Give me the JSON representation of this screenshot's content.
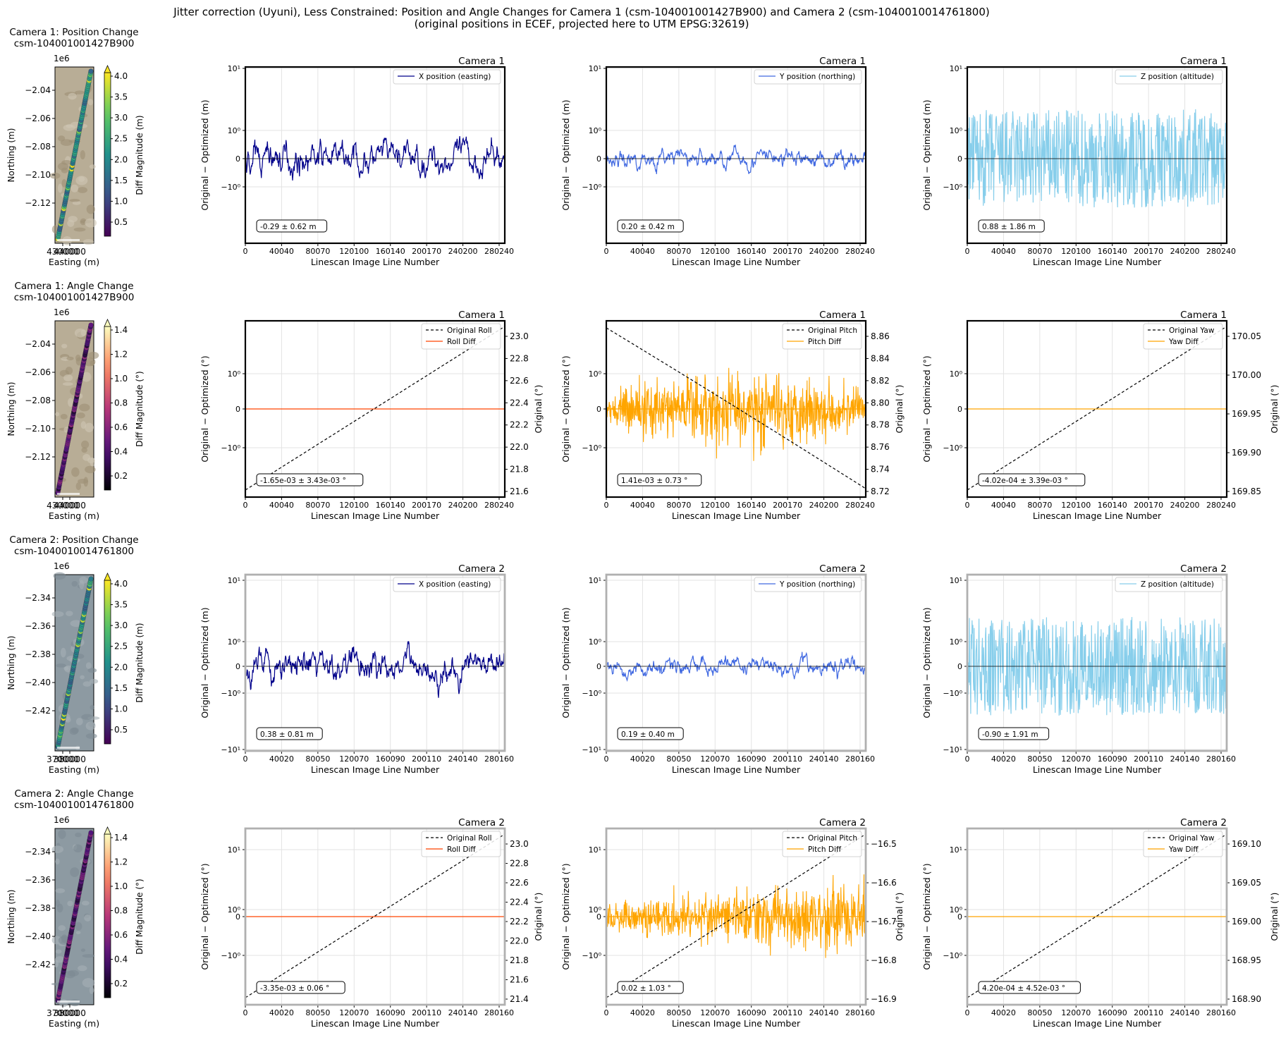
{
  "figure": {
    "title_line1": "Jitter correction (Uyuni), Less Constrained: Position and Angle Changes for Camera 1 (csm-104001001427B900) and Camera 2 (csm-1040010014761800)",
    "title_line2": "(original positions in ECEF, projected here to UTM EPSG:32619)"
  },
  "colors": {
    "x_pos": "#00008b",
    "y_pos": "#4169e1",
    "z_pos": "#87ceeb",
    "roll": "#ff4500",
    "pitch": "#ffa500",
    "yaw": "#ffa500",
    "original": "#000000"
  },
  "chart_data": [
    {
      "type": "scatter",
      "title_line1": "Camera 1: Position Change",
      "title_line2": "csm-104001001427B900",
      "xlabel": "Easting (m)",
      "ylabel": "Northing (m)",
      "x_offset_label": "",
      "y_offset_label": "1e6",
      "x_ticks": [
        "430000",
        "440000"
      ],
      "y_ticks": [
        "−2.04",
        "−2.06",
        "−2.08",
        "−2.10",
        "−2.12"
      ],
      "colorbar_label": "Diff Magnitude (m)",
      "colorbar_ticks": [
        "0.5",
        "1.0",
        "1.5",
        "2.0",
        "2.5",
        "3.0",
        "3.5",
        "4.0"
      ],
      "colormap": "viridis",
      "background": "terrain"
    },
    {
      "type": "line",
      "label": "Camera 1",
      "ylabel": "Original − Optimized (m)",
      "xlabel": "Linescan Image Line Number",
      "x_ticks": [
        "0",
        "40040",
        "80070",
        "120100",
        "160140",
        "200170",
        "240200",
        "280240"
      ],
      "y_ticks": [
        "10¹",
        "10⁰",
        "0",
        "−10⁰"
      ],
      "series": [
        {
          "name": "X position (easting)",
          "values": []
        }
      ],
      "stats": "-0.29 ± 0.62 m",
      "color_key": "x_pos",
      "highlight": true
    },
    {
      "type": "line",
      "label": "Camera 1",
      "ylabel": "Original − Optimized (m)",
      "xlabel": "Linescan Image Line Number",
      "x_ticks": [
        "0",
        "40040",
        "80070",
        "120100",
        "160140",
        "200170",
        "240200",
        "280240"
      ],
      "y_ticks": [
        "10¹",
        "10⁰",
        "0",
        "−10⁰"
      ],
      "series": [
        {
          "name": "Y position (northing)",
          "values": []
        }
      ],
      "stats": "0.20 ± 0.42 m",
      "color_key": "y_pos",
      "highlight": true
    },
    {
      "type": "line",
      "label": "Camera 1",
      "ylabel": "Original − Optimized (m)",
      "xlabel": "Linescan Image Line Number",
      "x_ticks": [
        "0",
        "40040",
        "80070",
        "120100",
        "160140",
        "200170",
        "240200",
        "280240"
      ],
      "y_ticks": [
        "10¹",
        "10⁰",
        "0",
        "−10⁰"
      ],
      "series": [
        {
          "name": "Z position (altitude)",
          "values": []
        }
      ],
      "stats": "0.88 ± 1.86 m",
      "color_key": "z_pos",
      "highlight": true
    },
    {
      "type": "scatter",
      "title_line1": "Camera 1: Angle Change",
      "title_line2": "csm-104001001427B900",
      "xlabel": "Easting (m)",
      "ylabel": "Northing (m)",
      "x_offset_label": "",
      "y_offset_label": "1e6",
      "x_ticks": [
        "430000",
        "440000"
      ],
      "y_ticks": [
        "−2.04",
        "−2.06",
        "−2.08",
        "−2.10",
        "−2.12"
      ],
      "colorbar_label": "Diff Magnitude (°)",
      "colorbar_ticks": [
        "0.2",
        "0.4",
        "0.6",
        "0.8",
        "1.0",
        "1.2",
        "1.4"
      ],
      "colormap": "magma",
      "background": "terrain"
    },
    {
      "type": "line",
      "label": "Camera 1",
      "ylabel": "Original − Optimized (°)",
      "ylabel2": "Original (°)",
      "xlabel": "Linescan Image Line Number",
      "x_ticks": [
        "0",
        "40040",
        "80070",
        "120100",
        "160140",
        "200170",
        "240200",
        "280240"
      ],
      "y_ticks": [
        "10⁰",
        "0",
        "−10⁰"
      ],
      "y2_ticks": [
        "23.0",
        "22.8",
        "22.6",
        "22.4",
        "22.2",
        "22.0",
        "21.8",
        "21.6"
      ],
      "series": [
        {
          "name": "Original Roll",
          "values": []
        },
        {
          "name": "Roll Diff",
          "values": []
        }
      ],
      "stats": "-1.65e-03 ± 3.43e-03 °",
      "color_key": "roll",
      "trend": "up",
      "noise": 0.0,
      "highlight": true
    },
    {
      "type": "line",
      "label": "Camera 1",
      "ylabel": "Original − Optimized (°)",
      "ylabel2": "Original (°)",
      "xlabel": "Linescan Image Line Number",
      "x_ticks": [
        "0",
        "40040",
        "80070",
        "120100",
        "160140",
        "200170",
        "240200",
        "280240"
      ],
      "y_ticks": [
        "10⁰",
        "0",
        "−10⁰"
      ],
      "y2_ticks": [
        "8.86",
        "8.84",
        "8.82",
        "8.80",
        "8.78",
        "8.76",
        "8.74",
        "8.72"
      ],
      "series": [
        {
          "name": "Original Pitch",
          "values": []
        },
        {
          "name": "Pitch Diff",
          "values": []
        }
      ],
      "stats": "1.41e-03 ± 0.73 °",
      "color_key": "pitch",
      "trend": "down",
      "noise": 1.0,
      "highlight": true
    },
    {
      "type": "line",
      "label": "Camera 1",
      "ylabel": "Original − Optimized (°)",
      "ylabel2": "Original (°)",
      "xlabel": "Linescan Image Line Number",
      "x_ticks": [
        "0",
        "40040",
        "80070",
        "120100",
        "160140",
        "200170",
        "240200",
        "280240"
      ],
      "y_ticks": [
        "10⁰",
        "0",
        "−10⁰"
      ],
      "y2_ticks": [
        "170.05",
        "170.00",
        "169.95",
        "169.90",
        "169.85"
      ],
      "series": [
        {
          "name": "Original Yaw",
          "values": []
        },
        {
          "name": "Yaw Diff",
          "values": []
        }
      ],
      "stats": "-4.02e-04 ± 3.39e-03 °",
      "color_key": "yaw",
      "trend": "up",
      "noise": 0.0,
      "highlight": true
    },
    {
      "type": "scatter",
      "title_line1": "Camera 2: Position Change",
      "title_line2": "csm-1040010014761800",
      "xlabel": "Easting (m)",
      "ylabel": "Northing (m)",
      "x_offset_label": "",
      "y_offset_label": "1e6",
      "x_ticks": [
        "370000",
        "380000"
      ],
      "y_ticks": [
        "−2.34",
        "−2.36",
        "−2.38",
        "−2.40",
        "−2.42"
      ],
      "colorbar_label": "Diff Magnitude (m)",
      "colorbar_ticks": [
        "0.5",
        "1.0",
        "1.5",
        "2.0",
        "2.5",
        "3.0",
        "3.5",
        "4.0"
      ],
      "colormap": "viridis",
      "background": "water"
    },
    {
      "type": "line",
      "label": "Camera 2",
      "ylabel": "Original − Optimized (m)",
      "xlabel": "Linescan Image Line Number",
      "x_ticks": [
        "0",
        "40020",
        "80050",
        "120070",
        "160090",
        "200110",
        "240140",
        "280160"
      ],
      "y_ticks": [
        "10¹",
        "10⁰",
        "0",
        "−10⁰",
        "−10¹"
      ],
      "series": [
        {
          "name": "X position (easting)",
          "values": []
        }
      ],
      "stats": "0.38 ± 0.81 m",
      "color_key": "x_pos",
      "highlight": false
    },
    {
      "type": "line",
      "label": "Camera 2",
      "ylabel": "Original − Optimized (m)",
      "xlabel": "Linescan Image Line Number",
      "x_ticks": [
        "0",
        "40020",
        "80050",
        "120070",
        "160090",
        "200110",
        "240140",
        "280160"
      ],
      "y_ticks": [
        "10¹",
        "10⁰",
        "0",
        "−10⁰",
        "−10¹"
      ],
      "series": [
        {
          "name": "Y position (northing)",
          "values": []
        }
      ],
      "stats": "0.19 ± 0.40 m",
      "color_key": "y_pos",
      "highlight": false
    },
    {
      "type": "line",
      "label": "Camera 2",
      "ylabel": "Original − Optimized (m)",
      "xlabel": "Linescan Image Line Number",
      "x_ticks": [
        "0",
        "40020",
        "80050",
        "120070",
        "160090",
        "200110",
        "240140",
        "280160"
      ],
      "y_ticks": [
        "10¹",
        "10⁰",
        "0",
        "−10⁰",
        "−10¹"
      ],
      "series": [
        {
          "name": "Z position (altitude)",
          "values": []
        }
      ],
      "stats": "-0.90 ± 1.91 m",
      "color_key": "z_pos",
      "highlight": false
    },
    {
      "type": "scatter",
      "title_line1": "Camera 2: Angle Change",
      "title_line2": "csm-1040010014761800",
      "xlabel": "Easting (m)",
      "ylabel": "Northing (m)",
      "x_offset_label": "",
      "y_offset_label": "1e6",
      "x_ticks": [
        "370000",
        "380000"
      ],
      "y_ticks": [
        "−2.34",
        "−2.36",
        "−2.38",
        "−2.40",
        "−2.42"
      ],
      "colorbar_label": "Diff Magnitude (°)",
      "colorbar_ticks": [
        "0.2",
        "0.4",
        "0.6",
        "0.8",
        "1.0",
        "1.2",
        "1.4"
      ],
      "colormap": "magma",
      "background": "water"
    },
    {
      "type": "line",
      "label": "Camera 2",
      "ylabel": "Original − Optimized (°)",
      "ylabel2": "Original (°)",
      "xlabel": "Linescan Image Line Number",
      "x_ticks": [
        "0",
        "40020",
        "80050",
        "120070",
        "160090",
        "200110",
        "240140",
        "280160"
      ],
      "y_ticks": [
        "10¹",
        "10⁰",
        "0",
        "−10⁰"
      ],
      "y2_ticks": [
        "23.0",
        "22.8",
        "22.6",
        "22.4",
        "22.2",
        "22.0",
        "21.8",
        "21.6",
        "21.4"
      ],
      "series": [
        {
          "name": "Original Roll",
          "values": []
        },
        {
          "name": "Roll Diff",
          "values": []
        }
      ],
      "stats": "-3.35e-03 ± 0.06 °",
      "color_key": "roll",
      "trend": "up",
      "noise": 0.0,
      "highlight": false
    },
    {
      "type": "line",
      "label": "Camera 2",
      "ylabel": "Original − Optimized (°)",
      "ylabel2": "Original (°)",
      "xlabel": "Linescan Image Line Number",
      "x_ticks": [
        "0",
        "40020",
        "80050",
        "120070",
        "160090",
        "200110",
        "240140",
        "280160"
      ],
      "y_ticks": [
        "10¹",
        "10⁰",
        "0",
        "−10⁰"
      ],
      "y2_ticks": [
        "−16.5",
        "−16.6",
        "−16.7",
        "−16.8",
        "−16.9"
      ],
      "series": [
        {
          "name": "Original Pitch",
          "values": []
        },
        {
          "name": "Pitch Diff",
          "values": []
        }
      ],
      "stats": "0.02 ± 1.03 °",
      "color_key": "pitch",
      "trend": "up",
      "noise": 1.0,
      "highlight": false
    },
    {
      "type": "line",
      "label": "Camera 2",
      "ylabel": "Original − Optimized (°)",
      "ylabel2": "Original (°)",
      "xlabel": "Linescan Image Line Number",
      "x_ticks": [
        "0",
        "40020",
        "80050",
        "120070",
        "160090",
        "200110",
        "240140",
        "280160"
      ],
      "y_ticks": [
        "10¹",
        "10⁰",
        "0",
        "−10⁰"
      ],
      "y2_ticks": [
        "169.10",
        "169.05",
        "169.00",
        "168.95",
        "168.90"
      ],
      "series": [
        {
          "name": "Original Yaw",
          "values": []
        },
        {
          "name": "Yaw Diff",
          "values": []
        }
      ],
      "stats": "4.20e-04 ± 4.52e-03 °",
      "color_key": "yaw",
      "trend": "up",
      "noise": 0.0,
      "highlight": false
    }
  ]
}
